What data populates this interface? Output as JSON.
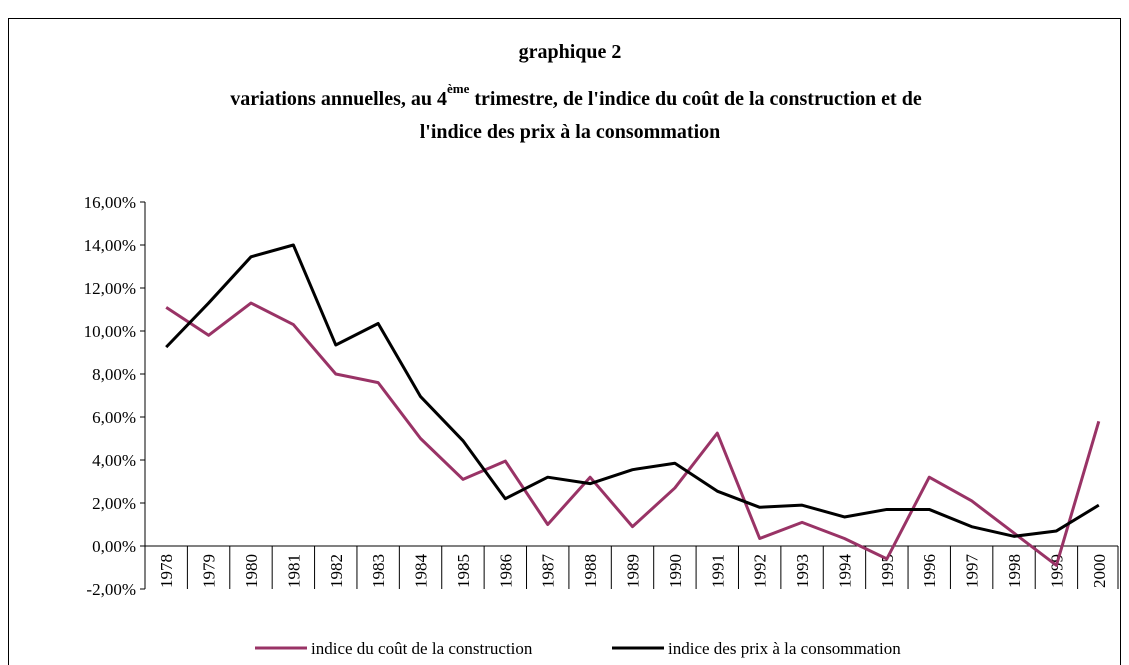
{
  "chart_data": {
    "type": "line",
    "title": "graphique 2",
    "subtitle": [
      "variations annuelles, au 4",
      "ème",
      " trimestre, de l'indice du coût de la construction et de",
      "l'indice des prix à la consommation"
    ],
    "categories": [
      "1978",
      "1979",
      "1980",
      "1981",
      "1982",
      "1983",
      "1984",
      "1985",
      "1986",
      "1987",
      "1988",
      "1989",
      "1990",
      "1991",
      "1992",
      "1993",
      "1994",
      "1995",
      "1996",
      "1997",
      "1998",
      "1999",
      "2000"
    ],
    "series": [
      {
        "name": "indice du coût de la construction",
        "color": "#993366",
        "values": [
          11.1,
          9.8,
          11.3,
          10.3,
          8.0,
          7.6,
          5.0,
          3.1,
          3.95,
          1.0,
          3.2,
          0.9,
          2.7,
          5.25,
          0.35,
          1.1,
          0.35,
          -0.6,
          3.2,
          2.1,
          0.6,
          -0.9,
          5.8
        ]
      },
      {
        "name": "indice des prix à la consommation",
        "color": "#000000",
        "values": [
          9.25,
          11.3,
          13.45,
          14.0,
          9.35,
          10.35,
          6.95,
          4.9,
          2.2,
          3.2,
          2.9,
          3.55,
          3.85,
          2.55,
          1.8,
          1.9,
          1.35,
          1.7,
          1.7,
          0.9,
          0.45,
          0.7,
          1.9
        ]
      }
    ],
    "ylim": [
      -2,
      16
    ],
    "yticks": [
      {
        "value": -2,
        "label": "-2,00%"
      },
      {
        "value": 0,
        "label": "0,00%"
      },
      {
        "value": 2,
        "label": "2,00%"
      },
      {
        "value": 4,
        "label": "4,00%"
      },
      {
        "value": 6,
        "label": "6,00%"
      },
      {
        "value": 8,
        "label": "8,00%"
      },
      {
        "value": 10,
        "label": "10,00%"
      },
      {
        "value": 12,
        "label": "12,00%"
      },
      {
        "value": 14,
        "label": "14,00%"
      },
      {
        "value": 16,
        "label": "16,00%"
      }
    ],
    "legend": "bottom"
  }
}
